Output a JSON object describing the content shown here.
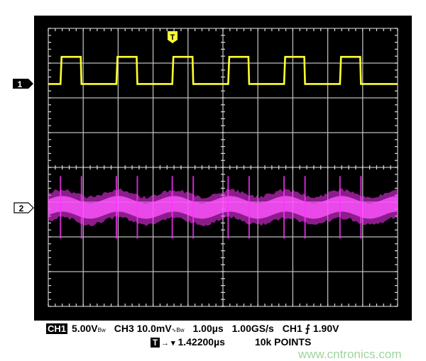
{
  "chart_data": {
    "type": "line",
    "title": "",
    "grid": true,
    "x_divisions": 10,
    "y_divisions": 8,
    "time_per_div_us": 1.0,
    "series": [
      {
        "name": "1",
        "color": "#ffff33",
        "waveform": "square",
        "volts_per_div": 5.0,
        "period_us": 1.6,
        "pulse_width_us": 0.6,
        "high_div": 0.78,
        "offset_div": 2.4,
        "pulses_visible": 6,
        "first_rise_us": 0.35
      },
      {
        "name": "2",
        "color": "#ff33ff",
        "waveform": "noise band",
        "volts_per_div": 0.01,
        "band_halfwidth_div": 0.45,
        "offset_div": -1.15,
        "period_us": 1.6
      }
    ]
  },
  "markers": {
    "ch1": "1",
    "ch2": "2",
    "trigger": "T"
  },
  "status": {
    "ch1_badge": "CH1",
    "ch1_scale": "5.00V",
    "bw": "Bw",
    "ch3_scale": "CH3 10.0mV",
    "ch3_symbol": "∿",
    "timebase": "1.00µs",
    "sample_rate": "1.00GS/s",
    "trigger_source": "CH1",
    "trigger_edge": "⨍",
    "trigger_level": "1.90V",
    "trigger_badge": "T",
    "trigger_arrow": "→ ▾",
    "trigger_position": "1.42200µs",
    "record_length": "10k POINTS"
  },
  "watermark": "www.cntronics.com"
}
